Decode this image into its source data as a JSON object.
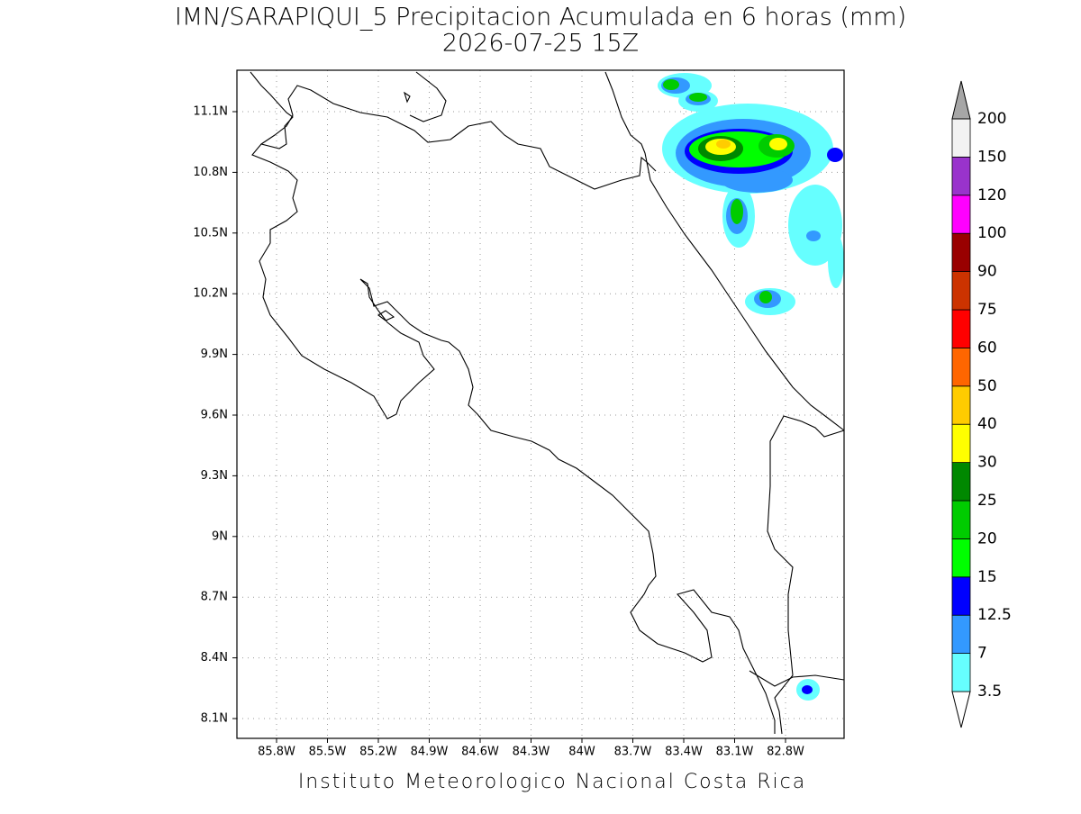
{
  "title": "IMN/SARAPIQUI_5 Precipitacion Acumulada en 6 horas (mm)",
  "subtitle": "2026-07-25 15Z",
  "map": {
    "lon_labels": [
      "85.8W",
      "85.5W",
      "85.2W",
      "84.9W",
      "84.6W",
      "84.3W",
      "84W",
      "83.7W",
      "83.4W",
      "83.1W",
      "82.8W"
    ],
    "lat_labels": [
      "11.1N",
      "10.8N",
      "10.5N",
      "10.2N",
      "9.9N",
      "9.6N",
      "9.3N",
      "9N",
      "8.7N",
      "8.4N",
      "8.1N"
    ]
  },
  "colorbar": {
    "levels": [
      3.5,
      7,
      12.5,
      15,
      20,
      25,
      30,
      40,
      50,
      60,
      75,
      90,
      100,
      120,
      150,
      200
    ],
    "colors": [
      "#ffffff",
      "#66ffff",
      "#3399ff",
      "#0000ff",
      "#00ff00",
      "#00cc00",
      "#008800",
      "#ffff00",
      "#ffcc00",
      "#ff6600",
      "#ff0000",
      "#cc3300",
      "#990000",
      "#ff00ff",
      "#9933cc",
      "#f2f2f2",
      "#a6a6a6"
    ]
  },
  "footer": "Instituto Meteorologico Nacional Costa Rica"
}
